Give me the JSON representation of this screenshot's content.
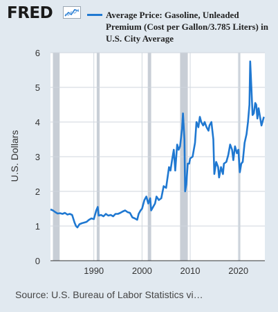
{
  "brand": {
    "name": "FRED"
  },
  "legend": {
    "label": "Average Price: Gasoline, Unleaded Premium (Cost per Gallon/3.785 Liters) in U.S. City Average",
    "color": "#1f78d1"
  },
  "source": "Source: U.S. Bureau of Labor Statistics vi…",
  "colors": {
    "background": "#e1e9f0",
    "plot": "#ffffff",
    "recession": "#c8ced6",
    "grid": "#cfd6de"
  },
  "chart_data": {
    "type": "line",
    "ylabel": "U.S. Dollars",
    "xlim": [
      1981,
      2025.5
    ],
    "ylim": [
      0,
      6
    ],
    "xticks": [
      1990,
      2000,
      2010,
      2020
    ],
    "yticks": [
      0,
      1,
      2,
      3,
      4,
      5,
      6
    ],
    "grid": true,
    "legend_position": "top",
    "recessions": [
      [
        1981.5,
        1982.9
      ],
      [
        1990.6,
        1991.2
      ],
      [
        2001.2,
        2001.9
      ],
      [
        2007.9,
        2009.5
      ],
      [
        2020.1,
        2020.4
      ]
    ],
    "series": [
      {
        "name": "Average Price: Gasoline, Unleaded Premium (Cost per Gallon/3.785 Liters) in U.S. City Average",
        "x": [
          1981.0,
          1981.5,
          1982.0,
          1982.5,
          1983.0,
          1983.5,
          1984.0,
          1984.5,
          1985.0,
          1985.5,
          1986.0,
          1986.3,
          1986.6,
          1987.0,
          1987.5,
          1988.0,
          1988.5,
          1989.0,
          1989.5,
          1990.0,
          1990.5,
          1990.8,
          1991.0,
          1991.5,
          1992.0,
          1992.5,
          1993.0,
          1993.5,
          1994.0,
          1994.5,
          1995.0,
          1995.5,
          1996.0,
          1996.5,
          1997.0,
          1997.5,
          1998.0,
          1998.5,
          1999.0,
          1999.3,
          1999.7,
          2000.0,
          2000.5,
          2000.9,
          2001.3,
          2001.7,
          2001.9,
          2002.3,
          2002.7,
          2003.0,
          2003.5,
          2004.0,
          2004.5,
          2005.0,
          2005.6,
          2005.9,
          2006.3,
          2006.6,
          2006.9,
          2007.3,
          2007.6,
          2007.9,
          2008.3,
          2008.5,
          2008.8,
          2008.95,
          2009.2,
          2009.5,
          2009.8,
          2010.0,
          2010.5,
          2011.0,
          2011.3,
          2011.7,
          2012.0,
          2012.3,
          2012.7,
          2013.0,
          2013.4,
          2013.8,
          2014.0,
          2014.4,
          2014.8,
          2015.0,
          2015.4,
          2015.8,
          2016.0,
          2016.4,
          2016.8,
          2017.0,
          2017.5,
          2017.9,
          2018.3,
          2018.7,
          2018.95,
          2019.3,
          2019.7,
          2020.0,
          2020.3,
          2020.6,
          2020.9,
          2021.3,
          2021.7,
          2022.0,
          2022.3,
          2022.45,
          2022.7,
          2022.95,
          2023.2,
          2023.5,
          2023.7,
          2023.95,
          2024.2,
          2024.5,
          2024.8,
          2025.0,
          2025.3
        ],
        "values": [
          1.48,
          1.45,
          1.4,
          1.36,
          1.37,
          1.35,
          1.38,
          1.33,
          1.35,
          1.32,
          1.1,
          1.0,
          0.96,
          1.05,
          1.08,
          1.1,
          1.12,
          1.18,
          1.22,
          1.2,
          1.45,
          1.55,
          1.3,
          1.32,
          1.28,
          1.35,
          1.3,
          1.32,
          1.28,
          1.35,
          1.35,
          1.38,
          1.42,
          1.45,
          1.4,
          1.38,
          1.25,
          1.22,
          1.18,
          1.35,
          1.45,
          1.5,
          1.75,
          1.85,
          1.65,
          1.8,
          1.45,
          1.55,
          1.65,
          1.85,
          1.75,
          1.8,
          2.15,
          2.1,
          2.7,
          2.6,
          2.95,
          3.2,
          2.6,
          3.35,
          3.2,
          3.3,
          3.8,
          4.25,
          3.5,
          2.0,
          2.2,
          2.8,
          2.8,
          2.95,
          3.0,
          3.4,
          4.0,
          3.85,
          4.15,
          4.0,
          3.9,
          4.0,
          3.85,
          3.75,
          3.9,
          4.0,
          3.5,
          2.5,
          2.85,
          2.7,
          2.4,
          2.7,
          2.5,
          2.8,
          2.85,
          3.05,
          3.35,
          3.2,
          2.9,
          3.3,
          3.1,
          3.2,
          2.55,
          2.8,
          2.85,
          3.4,
          3.65,
          4.0,
          4.5,
          5.75,
          5.0,
          4.2,
          4.25,
          4.55,
          4.5,
          4.1,
          4.4,
          4.15,
          3.9,
          4.0,
          4.15
        ]
      }
    ]
  }
}
